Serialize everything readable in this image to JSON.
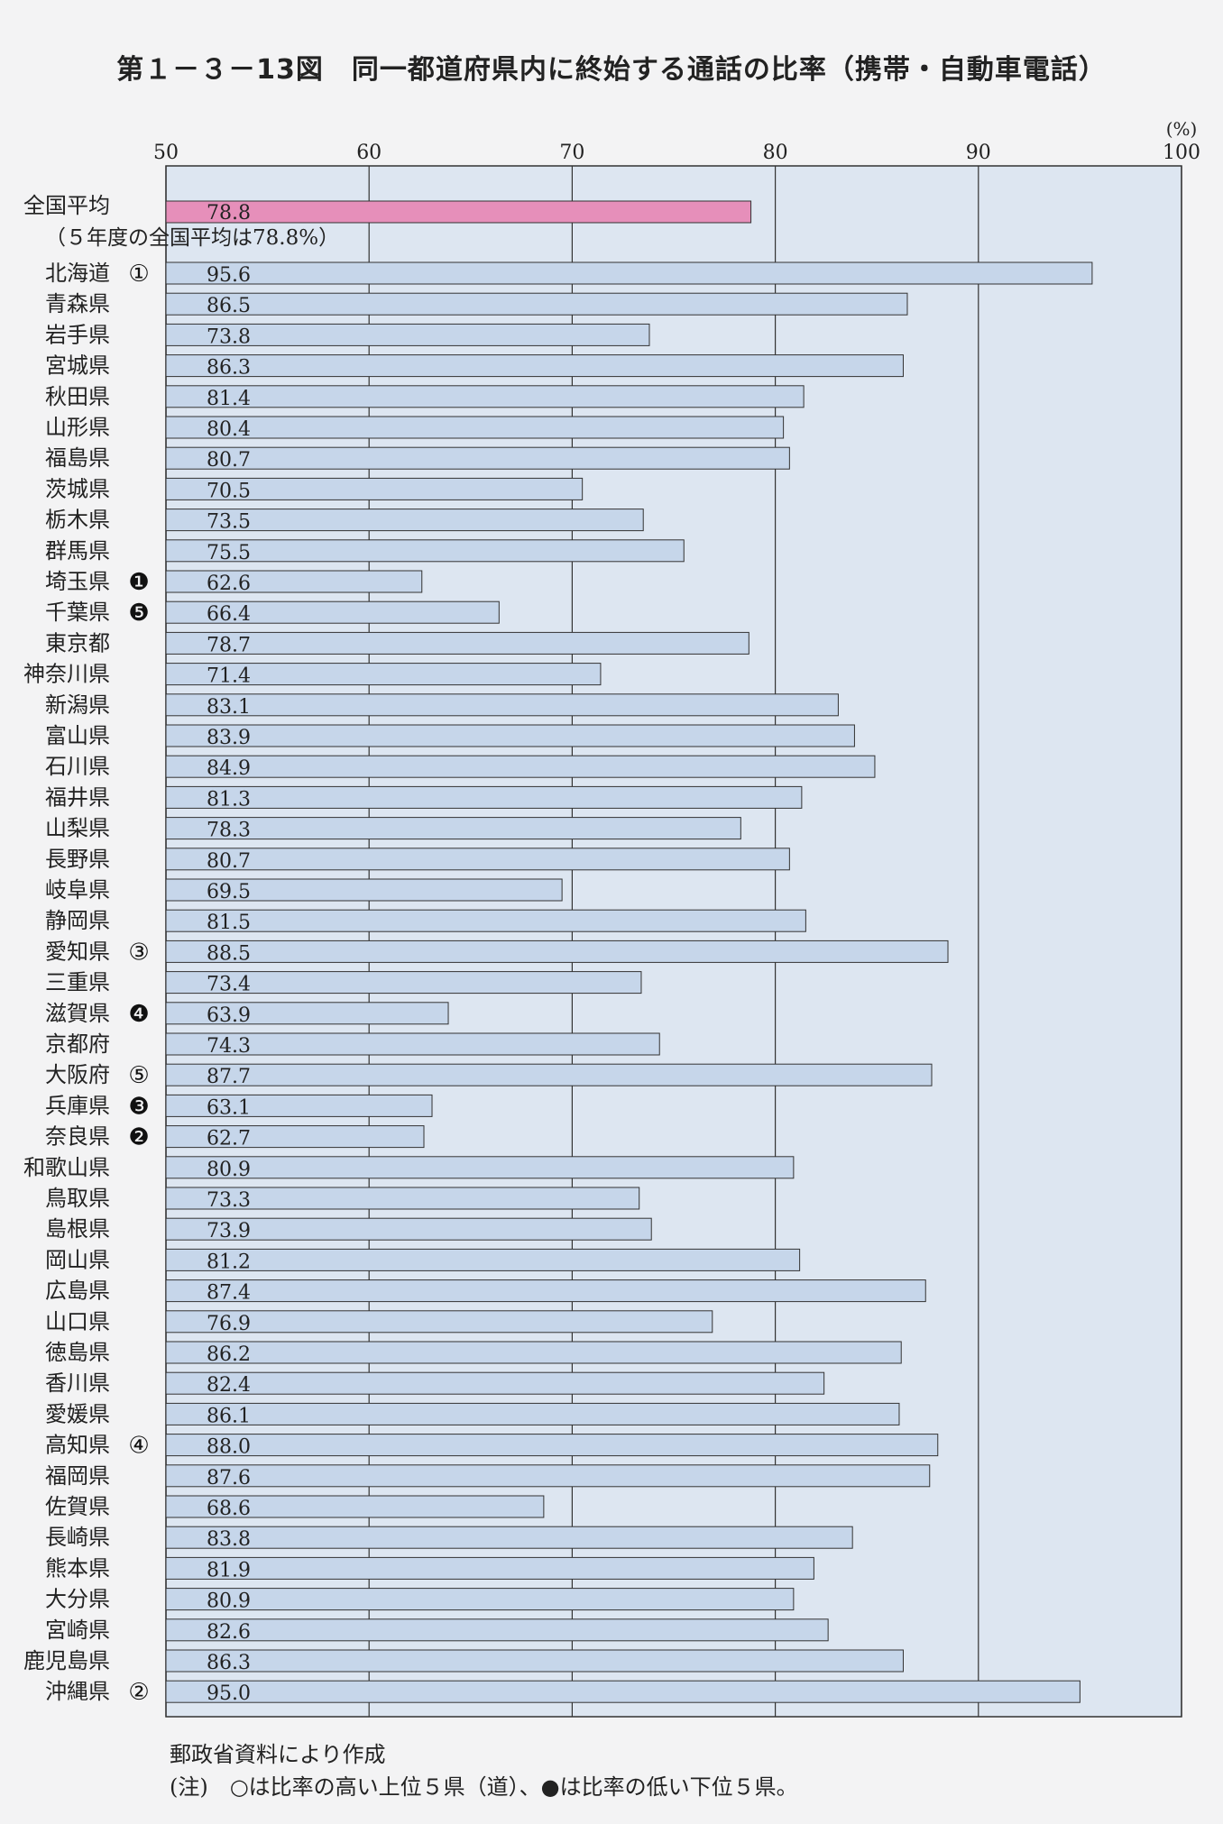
{
  "title": "第１－３－13図　同一都道府県内に終始する通話の比率（携帯・自動車電話）",
  "source_note": "郵政省資料により作成",
  "footnote": "(注)　○は比率の高い上位５県（道）、●は比率の低い下位５県。",
  "colors": {
    "bar": "#c6d6ea",
    "national_bar": "#e68fba",
    "plot_bg": "#dde6f1",
    "grid": "#333333"
  },
  "chart_data": {
    "type": "bar",
    "orientation": "horizontal",
    "title": "第１－３－13図　同一都道府県内に終始する通話の比率（携帯・自動車電話）",
    "unit_label": "(%)",
    "xlim": [
      50,
      100
    ],
    "xticks": [
      "50",
      "60",
      "70",
      "80",
      "90",
      "100"
    ],
    "grid": true,
    "national_average": {
      "label": "全国平均",
      "value": 78.8,
      "value_label": "78.8",
      "note": "（５年度の全国平均は78.8%）"
    },
    "categories": [
      "北海道",
      "青森県",
      "岩手県",
      "宮城県",
      "秋田県",
      "山形県",
      "福島県",
      "茨城県",
      "栃木県",
      "群馬県",
      "埼玉県",
      "千葉県",
      "東京都",
      "神奈川県",
      "新潟県",
      "富山県",
      "石川県",
      "福井県",
      "山梨県",
      "長野県",
      "岐阜県",
      "静岡県",
      "愛知県",
      "三重県",
      "滋賀県",
      "京都府",
      "大阪府",
      "兵庫県",
      "奈良県",
      "和歌山県",
      "鳥取県",
      "島根県",
      "岡山県",
      "広島県",
      "山口県",
      "徳島県",
      "香川県",
      "愛媛県",
      "高知県",
      "福岡県",
      "佐賀県",
      "長崎県",
      "熊本県",
      "大分県",
      "宮崎県",
      "鹿児島県",
      "沖縄県"
    ],
    "values": [
      95.6,
      86.5,
      73.8,
      86.3,
      81.4,
      80.4,
      80.7,
      70.5,
      73.5,
      75.5,
      62.6,
      66.4,
      78.7,
      71.4,
      83.1,
      83.9,
      84.9,
      81.3,
      78.3,
      80.7,
      69.5,
      81.5,
      88.5,
      73.4,
      63.9,
      74.3,
      87.7,
      63.1,
      62.7,
      80.9,
      73.3,
      73.9,
      81.2,
      87.4,
      76.9,
      86.2,
      82.4,
      86.1,
      88.0,
      87.6,
      68.6,
      83.8,
      81.9,
      80.9,
      82.6,
      86.3,
      95.0
    ],
    "value_labels": [
      "95.6",
      "86.5",
      "73.8",
      "86.3",
      "81.4",
      "80.4",
      "80.7",
      "70.5",
      "73.5",
      "75.5",
      "62.6",
      "66.4",
      "78.7",
      "71.4",
      "83.1",
      "83.9",
      "84.9",
      "81.3",
      "78.3",
      "80.7",
      "69.5",
      "81.5",
      "88.5",
      "73.4",
      "63.9",
      "74.3",
      "87.7",
      "63.1",
      "62.7",
      "80.9",
      "73.3",
      "73.9",
      "81.2",
      "87.4",
      "76.9",
      "86.2",
      "82.4",
      "86.1",
      "88.0",
      "87.6",
      "68.6",
      "83.8",
      "81.9",
      "80.9",
      "82.6",
      "86.3",
      "95.0"
    ],
    "rank_marks": {
      "北海道": "①",
      "沖縄県": "②",
      "愛知県": "③",
      "高知県": "④",
      "大阪府": "⑤",
      "埼玉県": "❶",
      "奈良県": "❷",
      "兵庫県": "❸",
      "滋賀県": "❹",
      "千葉県": "❺"
    }
  }
}
